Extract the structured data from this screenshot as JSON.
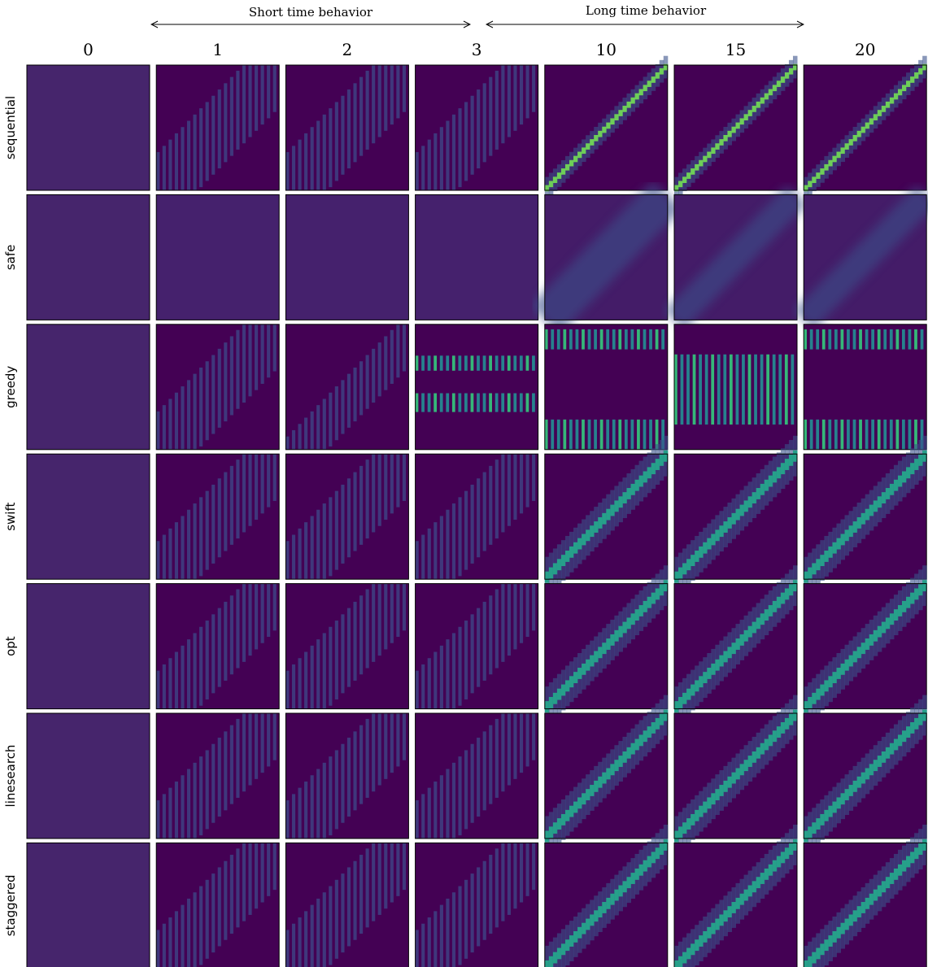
{
  "header": {
    "short": "Short time behavior",
    "long": "Long time behavior"
  },
  "columns": [
    "0",
    "1",
    "2",
    "3",
    "10",
    "15",
    "20"
  ],
  "rows": [
    "sequential",
    "safe",
    "greedy",
    "swift",
    "opt",
    "linesearch",
    "staggered"
  ]
}
